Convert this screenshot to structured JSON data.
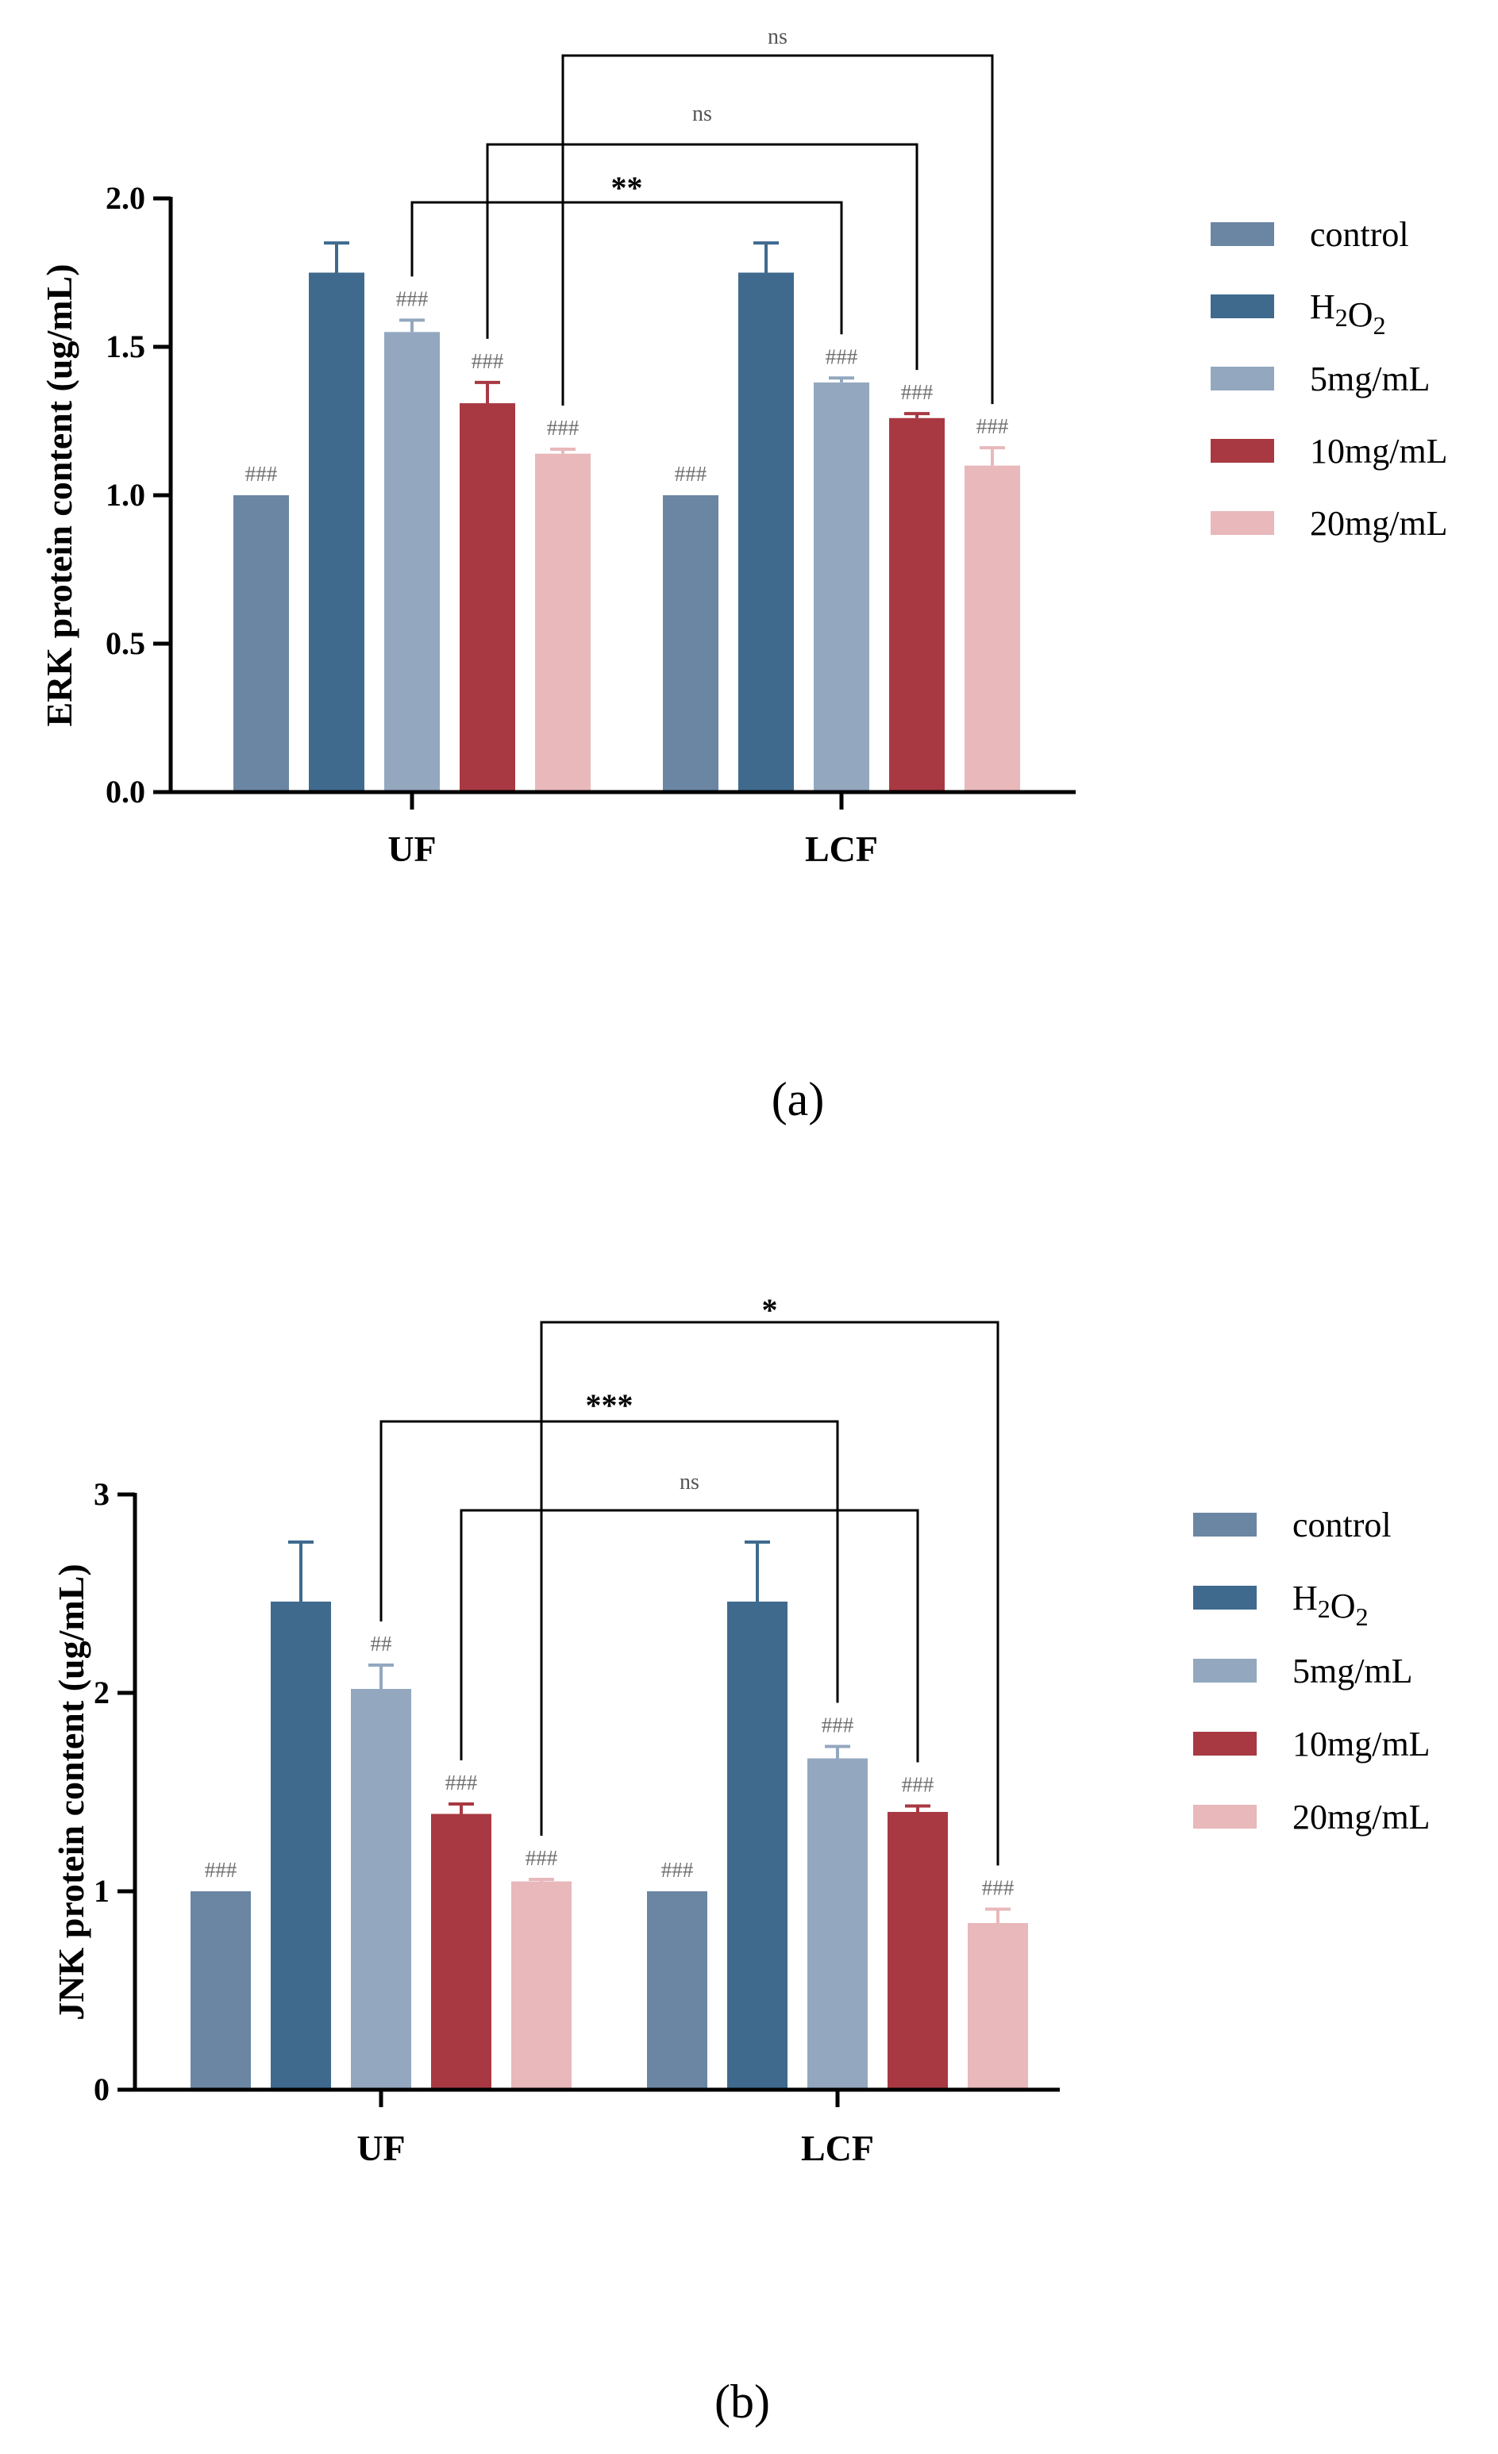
{
  "colors": {
    "control": "#6b86a3",
    "h2o2": "#3f6a8e",
    "mg5": "#93a8bf",
    "mg10": "#a83942",
    "mg20": "#e8b8bb",
    "axis": "#000000"
  },
  "chart_data": [
    {
      "type": "bar",
      "panel_label": "(a)",
      "ylabel": "ERK protein content  (ug/mL)",
      "ylim": [
        0,
        2.0
      ],
      "yticks": [
        "0.0",
        "0.5",
        "1.0",
        "1.5",
        "2.0"
      ],
      "ytick_values": [
        0,
        0.5,
        1.0,
        1.5,
        2.0
      ],
      "categories": [
        "UF",
        "LCF"
      ],
      "series": [
        {
          "name": "control",
          "sub": "",
          "color_key": "control",
          "values": [
            1.0,
            1.0
          ],
          "errors": [
            0,
            0
          ],
          "marks": [
            "###",
            "###"
          ]
        },
        {
          "name": "H",
          "sub": "2",
          "name2": "O",
          "sub2": "2",
          "color_key": "h2o2",
          "values": [
            1.75,
            1.75
          ],
          "errors": [
            0.1,
            0.1
          ],
          "marks": [
            "",
            ""
          ]
        },
        {
          "name": "5mg/mL",
          "sub": "",
          "color_key": "mg5",
          "values": [
            1.55,
            1.38
          ],
          "errors": [
            0.04,
            0.015
          ],
          "marks": [
            "###",
            "###"
          ]
        },
        {
          "name": "10mg/mL",
          "sub": "",
          "color_key": "mg10",
          "values": [
            1.31,
            1.26
          ],
          "errors": [
            0.07,
            0.015
          ],
          "marks": [
            "###",
            "###"
          ]
        },
        {
          "name": "20mg/mL",
          "sub": "",
          "color_key": "mg20",
          "values": [
            1.14,
            1.1
          ],
          "errors": [
            0.015,
            0.06
          ],
          "marks": [
            "###",
            "###"
          ]
        }
      ],
      "comparisons": [
        {
          "from": [
            0,
            2
          ],
          "to": [
            1,
            2
          ],
          "label": "**"
        },
        {
          "from": [
            0,
            4
          ],
          "to": [
            1,
            4
          ],
          "label": "ns"
        },
        {
          "from": [
            0,
            3
          ],
          "to": [
            1,
            3
          ],
          "label": "ns"
        }
      ],
      "legend_placement": "right"
    },
    {
      "type": "bar",
      "panel_label": "(b)",
      "ylabel": "JNK protein content  (ug/mL)",
      "ylim": [
        0,
        3
      ],
      "yticks": [
        "0",
        "1",
        "2",
        "3"
      ],
      "ytick_values": [
        0,
        1,
        2,
        3
      ],
      "categories": [
        "UF",
        "LCF"
      ],
      "series": [
        {
          "name": "control",
          "sub": "",
          "color_key": "control",
          "values": [
            1.0,
            1.0
          ],
          "errors": [
            0,
            0
          ],
          "marks": [
            "###",
            "###"
          ]
        },
        {
          "name": "H",
          "sub": "2",
          "name2": "O",
          "sub2": "2",
          "color_key": "h2o2",
          "values": [
            2.46,
            2.46
          ],
          "errors": [
            0.3,
            0.3
          ],
          "marks": [
            "",
            ""
          ]
        },
        {
          "name": "5mg/mL",
          "sub": "",
          "color_key": "mg5",
          "values": [
            2.02,
            1.67
          ],
          "errors": [
            0.12,
            0.06
          ],
          "marks": [
            "##",
            "###"
          ]
        },
        {
          "name": "10mg/mL",
          "sub": "",
          "color_key": "mg10",
          "values": [
            1.39,
            1.4
          ],
          "errors": [
            0.05,
            0.03
          ],
          "marks": [
            "###",
            "###"
          ]
        },
        {
          "name": "20mg/mL",
          "sub": "",
          "color_key": "mg20",
          "values": [
            1.05,
            0.84
          ],
          "errors": [
            0.01,
            0.07
          ],
          "marks": [
            "###",
            "###"
          ]
        }
      ],
      "comparisons": [
        {
          "from": [
            0,
            4
          ],
          "to": [
            1,
            4
          ],
          "label": "*"
        },
        {
          "from": [
            0,
            2
          ],
          "to": [
            1,
            2
          ],
          "label": "***"
        },
        {
          "from": [
            0,
            3
          ],
          "to": [
            1,
            3
          ],
          "label": "ns"
        }
      ],
      "legend_placement": "right"
    }
  ]
}
